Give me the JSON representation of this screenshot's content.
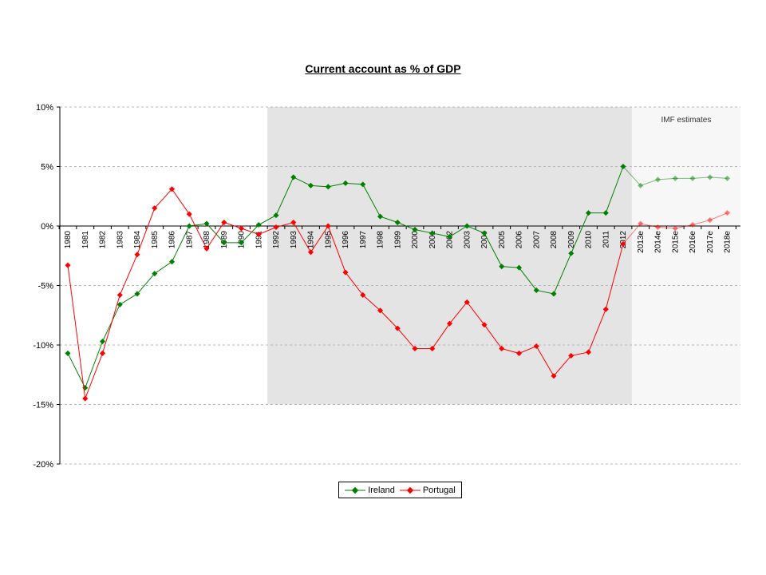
{
  "chart_data": {
    "type": "line",
    "title": "Current account as % of GDP",
    "xlabel": "",
    "ylabel": "",
    "ylim": [
      -20,
      10
    ],
    "yticks": [
      "10%",
      "5%",
      "0%",
      "-5%",
      "-10%",
      "-15%",
      "-20%"
    ],
    "grid": true,
    "legend_position": "bottom",
    "annotation": "IMF estimates",
    "categories": [
      "1980",
      "1981",
      "1982",
      "1983",
      "1984",
      "1985",
      "1986",
      "1987",
      "1988",
      "1989",
      "1990",
      "1991",
      "1992",
      "1993",
      "1994",
      "1995",
      "1996",
      "1997",
      "1998",
      "1999",
      "2000",
      "2001",
      "2002",
      "2003",
      "2004",
      "2005",
      "2006",
      "2007",
      "2008",
      "2009",
      "2010",
      "2011",
      "2012",
      "2013e",
      "2014e",
      "2015e",
      "2016e",
      "2017e",
      "2018e"
    ],
    "shaded_range": [
      "1992",
      "2012"
    ],
    "estimate_range": [
      "2013e",
      "2018e"
    ],
    "series": [
      {
        "name": "Ireland",
        "color": "#008000",
        "values": [
          -10.7,
          -13.6,
          -9.7,
          -6.6,
          -5.7,
          -4.0,
          -3.0,
          0.0,
          0.2,
          -1.4,
          -1.4,
          0.1,
          0.9,
          4.1,
          3.4,
          3.3,
          3.6,
          3.5,
          0.8,
          0.3,
          -0.3,
          -0.6,
          -0.9,
          0.0,
          -0.6,
          -3.4,
          -3.5,
          -5.4,
          -5.7,
          -2.3,
          1.1,
          1.1,
          5.0,
          3.4,
          3.9,
          4.0,
          4.0,
          4.1,
          4.0
        ]
      },
      {
        "name": "Portugal",
        "color": "#ff0000",
        "values": [
          -3.3,
          -14.5,
          -10.7,
          -5.8,
          -2.4,
          1.5,
          3.1,
          1.0,
          -1.9,
          0.3,
          -0.2,
          -0.7,
          -0.1,
          0.3,
          -2.2,
          0.0,
          -3.9,
          -5.8,
          -7.1,
          -8.6,
          -10.3,
          -10.3,
          -8.2,
          -6.4,
          -8.3,
          -10.3,
          -10.7,
          -10.1,
          -12.6,
          -10.9,
          -10.6,
          -7.0,
          -1.5,
          0.2,
          -0.1,
          -0.2,
          0.1,
          0.5,
          1.1
        ]
      }
    ]
  },
  "legend": {
    "ireland_label": "Ireland",
    "portugal_label": "Portugal"
  }
}
